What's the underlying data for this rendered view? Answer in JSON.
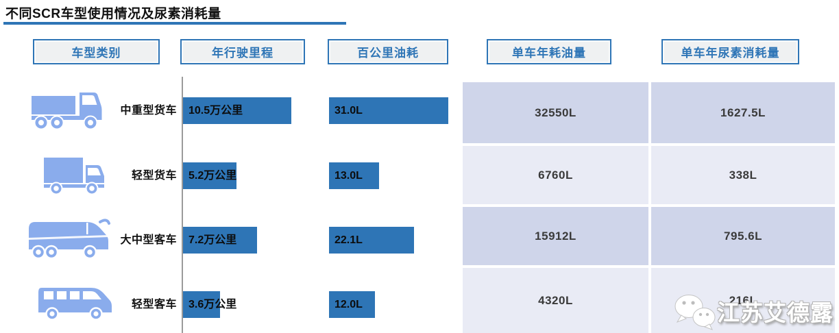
{
  "title": "不同SCR车型使用情况及尿素消耗量",
  "columns": {
    "vehicle_type": "车型类别",
    "annual_mileage": "年行驶里程",
    "fuel_per_100km": "百公里油耗",
    "annual_fuel": "单车年耗油量",
    "annual_urea": "单车年尿素消耗量"
  },
  "rows": [
    {
      "type_label": "中重型货车",
      "icon": "heavy-truck-icon",
      "mileage_label": "10.5万公里",
      "mileage_value": 10.5,
      "fuel_label": "31.0L",
      "fuel_value": 31.0,
      "annual_fuel": "32550L",
      "annual_urea": "1627.5L"
    },
    {
      "type_label": "轻型货车",
      "icon": "light-truck-icon",
      "mileage_label": "5.2万公里",
      "mileage_value": 5.2,
      "fuel_label": "13.0L",
      "fuel_value": 13.0,
      "annual_fuel": "6760L",
      "annual_urea": "338L"
    },
    {
      "type_label": "大中型客车",
      "icon": "coach-bus-icon",
      "mileage_label": "7.2万公里",
      "mileage_value": 7.2,
      "fuel_label": "22.1L",
      "fuel_value": 22.1,
      "annual_fuel": "15912L",
      "annual_urea": "795.6L"
    },
    {
      "type_label": "轻型客车",
      "icon": "minibus-icon",
      "mileage_label": "3.6万公里",
      "mileage_value": 3.6,
      "fuel_label": "12.0L",
      "fuel_value": 12.0,
      "annual_fuel": "4320L",
      "annual_urea": "216L"
    }
  ],
  "watermark": {
    "text": "江苏艾德露",
    "icon": "wechat-icon"
  },
  "colors": {
    "accent": "#2E75B6",
    "bar": "#2E75B6",
    "icon_blue": "#8AACEC",
    "table_row_dark": "#CFD5EA",
    "table_row_light": "#E9EBF5",
    "divider": "#9A9A9A"
  },
  "chart_data": {
    "type": "bar",
    "orientation": "horizontal",
    "title": "不同SCR车型使用情况及尿素消耗量",
    "categories": [
      "中重型货车",
      "轻型货车",
      "大中型客车",
      "轻型客车"
    ],
    "series": [
      {
        "name": "年行驶里程",
        "unit": "万公里",
        "values": [
          10.5,
          5.2,
          7.2,
          3.6
        ]
      },
      {
        "name": "百公里油耗",
        "unit": "L",
        "values": [
          31.0,
          13.0,
          22.1,
          12.0
        ]
      },
      {
        "name": "单车年耗油量",
        "unit": "L",
        "values": [
          32550,
          6760,
          15912,
          4320
        ]
      },
      {
        "name": "单车年尿素消耗量",
        "unit": "L",
        "values": [
          1627.5,
          338,
          795.6,
          216
        ]
      }
    ],
    "legend": "none",
    "grid": false,
    "notes": "年行驶里程与百公里油耗以数据条展示，单车年耗油量与单车年尿素消耗量以表格单元格展示"
  }
}
